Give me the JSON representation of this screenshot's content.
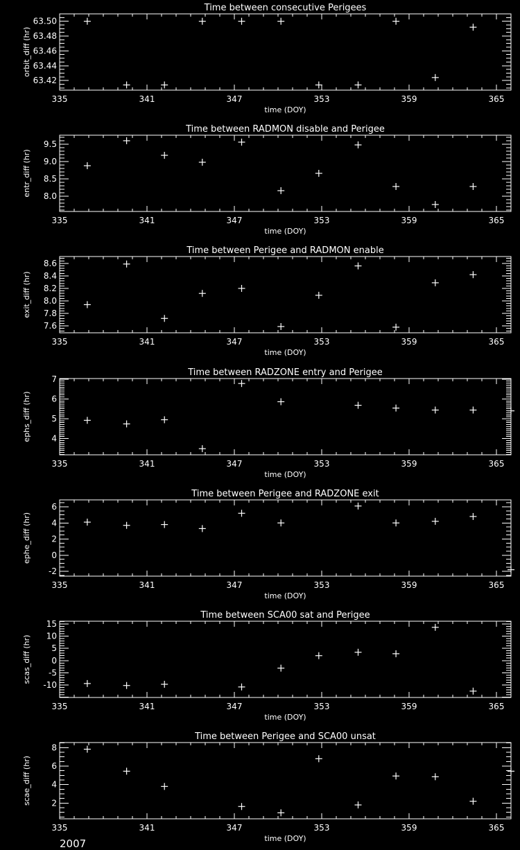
{
  "footer": "2007",
  "colors": {
    "background": "#000000",
    "foreground": "#ffffff"
  },
  "chart_data": [
    {
      "type": "scatter",
      "title": "Time between consecutive Perigees",
      "xlabel": "time (DOY)",
      "ylabel": "orbit_diff (hr)",
      "xlim": [
        335,
        366
      ],
      "xticks": [
        335,
        341,
        347,
        353,
        359,
        365
      ],
      "ylim": [
        63.407,
        63.51
      ],
      "yticks": [
        63.42,
        63.44,
        63.46,
        63.48,
        63.5
      ],
      "ytick_decimals": 2,
      "marker": "plus",
      "x": [
        336.9,
        339.6,
        342.2,
        344.8,
        347.5,
        350.2,
        352.8,
        355.5,
        358.1,
        360.8,
        363.4
      ],
      "y": [
        63.5,
        63.414,
        63.414,
        63.5,
        63.5,
        63.5,
        63.414,
        63.414,
        63.5,
        63.424,
        63.492
      ]
    },
    {
      "type": "scatter",
      "title": "Time between RADMON disable and Perigee",
      "xlabel": "time (DOY)",
      "ylabel": "entr_diff (hr)",
      "xlim": [
        335,
        366
      ],
      "xticks": [
        335,
        341,
        347,
        353,
        359,
        365
      ],
      "ylim": [
        7.56,
        9.76
      ],
      "yticks": [
        8.0,
        8.5,
        9.0,
        9.5
      ],
      "ytick_decimals": 1,
      "marker": "plus",
      "x": [
        336.9,
        339.6,
        342.2,
        344.8,
        347.5,
        350.2,
        352.8,
        355.5,
        358.1,
        360.8,
        363.4
      ],
      "y": [
        8.88,
        9.6,
        9.18,
        8.98,
        9.56,
        8.16,
        8.66,
        9.48,
        8.28,
        7.76,
        8.28
      ]
    },
    {
      "type": "scatter",
      "title": "Time between Perigee and RADMON enable",
      "xlabel": "time (DOY)",
      "ylabel": "exit_diff (hr)",
      "xlim": [
        335,
        366
      ],
      "xticks": [
        335,
        341,
        347,
        353,
        359,
        365
      ],
      "ylim": [
        7.49,
        8.71
      ],
      "yticks": [
        7.6,
        7.8,
        8.0,
        8.2,
        8.4,
        8.6
      ],
      "ytick_decimals": 1,
      "marker": "plus",
      "x": [
        336.9,
        339.6,
        342.2,
        344.8,
        347.5,
        350.2,
        352.8,
        355.5,
        358.1,
        360.8,
        363.4
      ],
      "y": [
        7.94,
        8.59,
        7.72,
        8.12,
        8.2,
        7.59,
        8.09,
        8.56,
        7.58,
        8.29,
        8.42
      ]
    },
    {
      "type": "scatter",
      "title": "Time between RADZONE entry and Perigee",
      "xlabel": "time (DOY)",
      "ylabel": "ephs_diff (hr)",
      "xlim": [
        335,
        366
      ],
      "xticks": [
        335,
        341,
        347,
        353,
        359,
        365
      ],
      "ylim": [
        3.18,
        7.03
      ],
      "yticks": [
        4,
        5,
        6,
        7
      ],
      "ytick_decimals": 0,
      "marker": "plus",
      "x": [
        336.9,
        339.6,
        342.2,
        344.8,
        347.5,
        350.2,
        355.5,
        358.1,
        360.8,
        363.4,
        366.0
      ],
      "y": [
        4.92,
        4.74,
        4.95,
        3.49,
        6.78,
        5.86,
        5.68,
        5.54,
        5.44,
        5.44,
        5.4
      ]
    },
    {
      "type": "scatter",
      "title": "Time between Perigee and RADZONE exit",
      "xlabel": "time (DOY)",
      "ylabel": "ephe_diff (hr)",
      "xlim": [
        335,
        366
      ],
      "xticks": [
        335,
        341,
        347,
        353,
        359,
        365
      ],
      "ylim": [
        -2.6,
        6.86
      ],
      "yticks": [
        -2,
        0,
        2,
        4,
        6
      ],
      "ytick_decimals": 0,
      "marker": "plus",
      "x": [
        336.9,
        339.6,
        342.2,
        344.8,
        347.5,
        350.2,
        355.5,
        358.1,
        360.8,
        363.4,
        366.0
      ],
      "y": [
        4.1,
        3.7,
        3.8,
        3.3,
        5.2,
        4.0,
        6.1,
        4.0,
        4.2,
        4.8,
        -1.8
      ]
    },
    {
      "type": "scatter",
      "title": "Time between SCA00 sat and Perigee",
      "xlabel": "time (DOY)",
      "ylabel": "scas_diff (hr)",
      "xlim": [
        335,
        366
      ],
      "xticks": [
        335,
        341,
        347,
        353,
        359,
        365
      ],
      "ylim": [
        -15.1,
        16.1
      ],
      "yticks": [
        -10,
        -5,
        0,
        5,
        10,
        15
      ],
      "ytick_decimals": 0,
      "marker": "plus",
      "x": [
        336.9,
        339.6,
        342.2,
        347.5,
        350.2,
        352.8,
        355.5,
        358.1,
        360.8,
        363.4
      ],
      "y": [
        -9.4,
        -10.2,
        -9.7,
        -10.8,
        -3.1,
        2.0,
        3.4,
        2.8,
        13.6,
        -12.5
      ]
    },
    {
      "type": "scatter",
      "title": "Time between Perigee and SCA00 unsat",
      "xlabel": "time (DOY)",
      "ylabel": "scae_diff (hr)",
      "xlim": [
        335,
        366
      ],
      "xticks": [
        335,
        341,
        347,
        353,
        359,
        365
      ],
      "ylim": [
        0.3,
        8.55
      ],
      "yticks": [
        2,
        4,
        6,
        8
      ],
      "ytick_decimals": 0,
      "marker": "plus",
      "x": [
        336.9,
        339.6,
        342.2,
        347.5,
        350.2,
        352.8,
        355.5,
        358.1,
        360.8,
        363.4,
        366.0
      ],
      "y": [
        7.83,
        5.45,
        3.8,
        1.63,
        0.95,
        6.8,
        1.8,
        4.93,
        4.85,
        2.2,
        5.45
      ]
    }
  ]
}
